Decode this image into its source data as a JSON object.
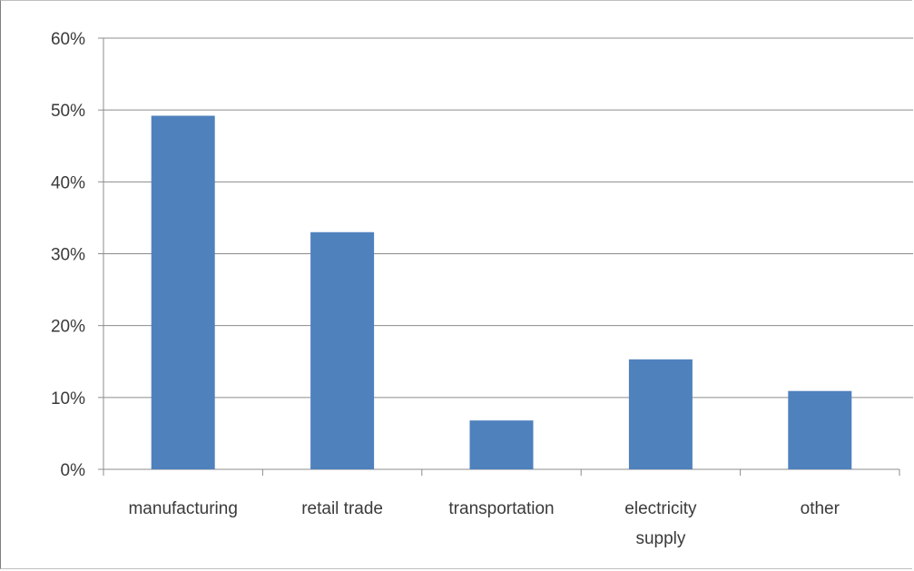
{
  "chart_data": {
    "type": "bar",
    "categories": [
      [
        "manufacturing"
      ],
      [
        "retail trade"
      ],
      [
        "transportation"
      ],
      [
        "electricity",
        "supply"
      ],
      [
        "other"
      ]
    ],
    "values": [
      0.492,
      0.33,
      0.068,
      0.153,
      0.109
    ],
    "ylim": [
      0,
      0.6
    ],
    "yticks": [
      0,
      0.1,
      0.2,
      0.3,
      0.4,
      0.5,
      0.6
    ],
    "ytick_labels": [
      "0%",
      "10%",
      "20%",
      "30%",
      "40%",
      "50%",
      "60%"
    ],
    "grid": true,
    "legend": "none",
    "bar_color": "#4f81bd",
    "grid_color": "#8c8c8c",
    "axis_color": "#8c8c8c"
  }
}
